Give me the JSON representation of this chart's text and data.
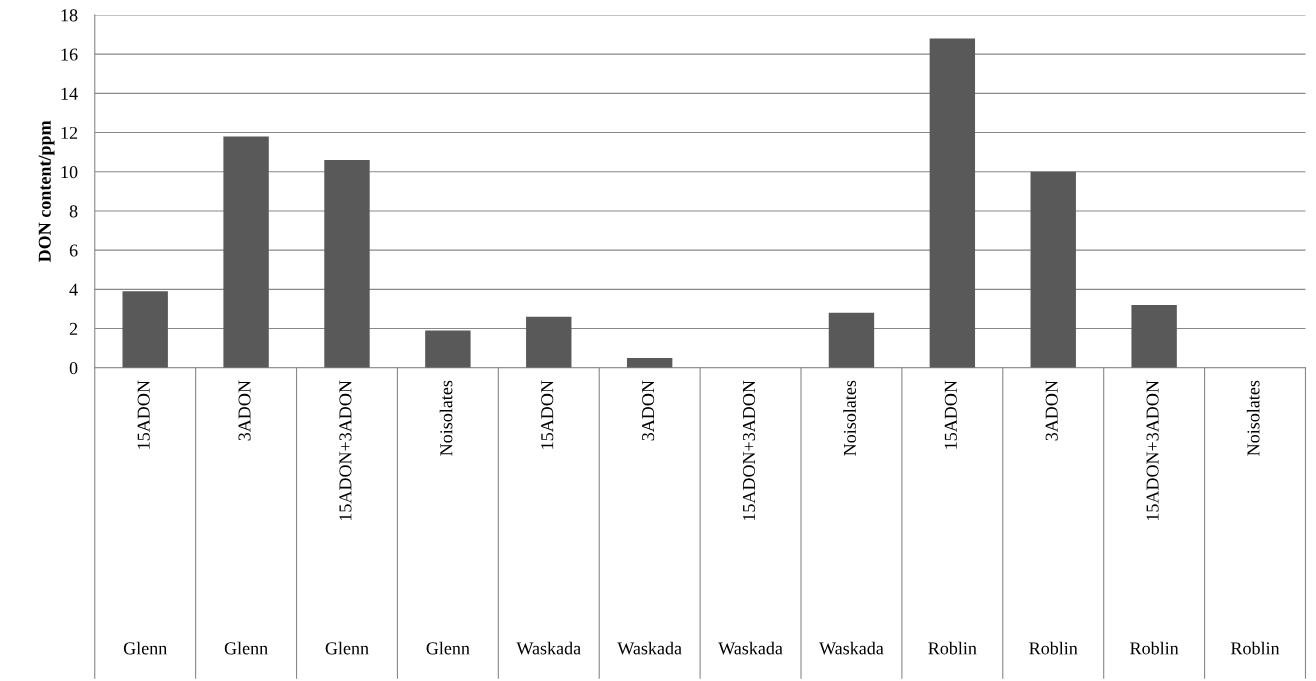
{
  "chart_data": {
    "type": "bar",
    "ylabel": "DON content/ppm",
    "categories": [
      "15ADON\nGlenn",
      "3ADON\nGlenn",
      "15ADON+3ADON\nGlenn",
      "Noisolates\nGlenn",
      "15ADON\nWaskada",
      "3ADON\nWaskada",
      "15ADON+3ADON\nWaskada",
      "Noisolates\nWaskada",
      "15ADON\nRoblin",
      "3ADON\nRoblin",
      "15ADON+3ADON\nRoblin",
      "Noisolates\nRoblin"
    ],
    "values": [
      3.9,
      11.8,
      10.6,
      1.9,
      2.6,
      0.5,
      0,
      2.8,
      16.8,
      10.0,
      3.2,
      0
    ],
    "color": "#595959",
    "ylim": [
      0,
      18
    ],
    "yticks": [
      0,
      2,
      4,
      6,
      8,
      10,
      12,
      14,
      16,
      18
    ],
    "grid": "y",
    "legend": false
  }
}
